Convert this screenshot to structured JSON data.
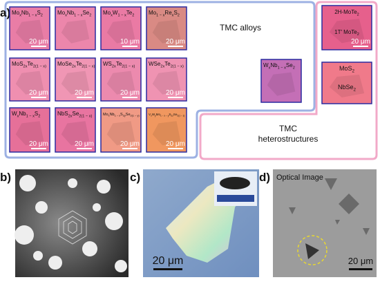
{
  "figure": {
    "panels": [
      "a)",
      "b)",
      "c)",
      "d)"
    ],
    "group_labels": {
      "alloys": "TMC alloys",
      "heterostructures": [
        "TMC",
        "heterostructures"
      ]
    },
    "tiles": [
      {
        "lines": [
          [
            "Mo",
            "x",
            "Nb",
            "1 − x",
            "S",
            "2"
          ]
        ],
        "scale": "20 μm",
        "color": "#e97da6"
      },
      {
        "lines": [
          [
            "Mo",
            "x",
            "Nb",
            "1 − x",
            "Se",
            "2"
          ]
        ],
        "color": "#ec86ab"
      },
      {
        "lines": [
          [
            "Mo",
            "x",
            "W",
            "1 − x",
            "Te",
            "2"
          ]
        ],
        "scale": "10 μm",
        "color": "#ea7aa4"
      },
      {
        "lines": [
          [
            "Mo",
            "1 − x",
            "Re",
            "x",
            "S",
            "2"
          ]
        ],
        "scale": "20 μm",
        "color": "#d98a84"
      },
      {
        "lines": [
          [
            "MoS",
            "2x",
            "Te",
            "2(1 − x)"
          ]
        ],
        "scale": "20 μm",
        "color": "#ef8fb0"
      },
      {
        "lines": [
          [
            "MoSe",
            "2x",
            "Te",
            "2(1 − x)"
          ]
        ],
        "scale": "20 μm",
        "color": "#f096b4"
      },
      {
        "lines": [
          [
            "WS",
            "2x",
            "Te",
            "2(1 − x)"
          ]
        ],
        "scale": "20 μm",
        "color": "#ec8aae"
      },
      {
        "lines": [
          [
            "WSe",
            "2x",
            "Te",
            "2(1 − x)"
          ]
        ],
        "scale": "20 μm",
        "color": "#ef93b2"
      },
      {
        "lines": [
          [
            "W",
            "x",
            "Nb",
            "1 − x",
            "Se",
            "2"
          ]
        ],
        "color": "#c46fb6"
      },
      {
        "lines": [
          [
            "W",
            "x",
            "Nb",
            "1 − x",
            "S",
            "2"
          ]
        ],
        "scale": "20 μm",
        "color": "#e67099"
      },
      {
        "lines": [
          [
            "NbS",
            "2x",
            "Se",
            "2(1 − x)"
          ]
        ],
        "scale": "20 μm",
        "color": "#e874a0"
      },
      {
        "lines": [
          [
            "Mo",
            "x",
            "Nb",
            "1 − x",
            "S",
            "2y",
            "Se",
            "2(1 − y)"
          ]
        ],
        "scale": "20 μm",
        "color": "#f09a85"
      },
      {
        "lines": [
          [
            "V",
            "x",
            "W",
            "y",
            "Mo",
            "1 − x − y",
            "S",
            "2z",
            "Se",
            "2(1 − z)"
          ]
        ],
        "scale": "20 μm",
        "color": "#f0975f"
      },
      {
        "lines": [
          [
            "2H-MoTe",
            "2"
          ],
          [
            "1T′ MoTe",
            "2"
          ]
        ],
        "scale": "20 μm",
        "color": "#e6608c"
      },
      {
        "lines": [
          [
            "MoS",
            "2"
          ],
          [
            "NbSe",
            "2"
          ]
        ],
        "color": "#f07a8a"
      }
    ],
    "panel_c_scale": "20 μm",
    "panel_d_title": "Optical Image",
    "panel_d_scale": "20 μm"
  }
}
